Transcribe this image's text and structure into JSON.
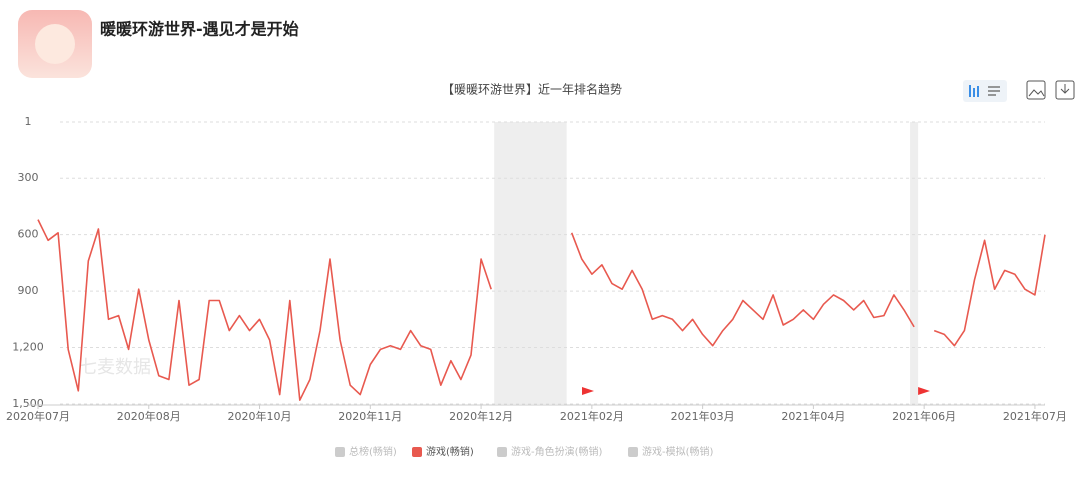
{
  "header": {
    "app_title": "暖暖环游世界-遇见才是开始"
  },
  "chart_data": {
    "type": "line",
    "title": "【暖暖环游世界】近一年排名趋势",
    "watermark": "七麦数据",
    "y_inverted": true,
    "ylim": [
      1,
      1500
    ],
    "yticks": [
      1,
      300,
      600,
      900,
      {
        "value": 1200,
        "label": "1,200"
      },
      {
        "value": 1500,
        "label": "1,500"
      }
    ],
    "xlim": [
      0,
      100
    ],
    "xticks": [
      {
        "value": 0,
        "label": "2020年07月"
      },
      {
        "value": 11,
        "label": "2020年08月"
      },
      {
        "value": 22,
        "label": "2020年10月"
      },
      {
        "value": 33,
        "label": "2020年11月"
      },
      {
        "value": 44,
        "label": "2020年12月"
      },
      {
        "value": 55,
        "label": "2021年02月"
      },
      {
        "value": 66,
        "label": "2021年03月"
      },
      {
        "value": 77,
        "label": "2021年04月"
      },
      {
        "value": 88,
        "label": "2021年06月"
      },
      {
        "value": 99,
        "label": "2021年07月"
      }
    ],
    "grid": true,
    "shaded_x_ranges": [
      [
        45.3,
        52.5
      ],
      [
        86.6,
        87.4
      ]
    ],
    "series": [
      {
        "name": "总榜(畅销)",
        "color": "#cccccc",
        "visible": false,
        "values": [
          null,
          null,
          null,
          null,
          null,
          null,
          null,
          null,
          null,
          null,
          null,
          null,
          null,
          null,
          null,
          null,
          null,
          null,
          null,
          null,
          null,
          null,
          null,
          null,
          null,
          null,
          null,
          null,
          null,
          null,
          null,
          null,
          null,
          null,
          null,
          null,
          null,
          null,
          null,
          null,
          null,
          null,
          null,
          null,
          null,
          null,
          null,
          null,
          null,
          null,
          null,
          null,
          null,
          null,
          null,
          null,
          null,
          null,
          null,
          null,
          null,
          null,
          null,
          null,
          null,
          null,
          null,
          null,
          null,
          null,
          null,
          null,
          null,
          null,
          null,
          null,
          null,
          null,
          null,
          null,
          null,
          null,
          null,
          null,
          null,
          null,
          null,
          null,
          null,
          null,
          null,
          null,
          null,
          null,
          null,
          null,
          null,
          null,
          null,
          null,
          null
        ]
      },
      {
        "name": "游戏(畅销)",
        "color": "#e8594f",
        "visible": true,
        "values": [
          520,
          630,
          590,
          1210,
          1430,
          740,
          570,
          1050,
          1030,
          1210,
          890,
          1160,
          1350,
          1370,
          950,
          1400,
          1370,
          950,
          950,
          1110,
          1030,
          1110,
          1050,
          1160,
          1450,
          950,
          1480,
          1370,
          1110,
          730,
          1160,
          1400,
          1450,
          1290,
          1210,
          1190,
          1210,
          1110,
          1190,
          1210,
          1400,
          1270,
          1370,
          1240,
          730,
          890,
          null,
          null,
          null,
          null,
          null,
          null,
          null,
          590,
          730,
          810,
          760,
          860,
          890,
          790,
          890,
          1050,
          1030,
          1050,
          1110,
          1050,
          1130,
          1190,
          1110,
          1050,
          950,
          1000,
          1050,
          920,
          1080,
          1050,
          1000,
          1050,
          970,
          920,
          950,
          1000,
          950,
          1040,
          1030,
          920,
          1000,
          1090,
          null,
          1110,
          1130,
          1190,
          1110,
          840,
          630,
          890,
          790,
          810,
          890,
          920,
          600
        ]
      },
      {
        "name": "游戏-角色扮演(畅销)",
        "color": "#cccccc",
        "visible": false,
        "values": [
          null,
          null,
          null,
          null,
          null,
          null,
          null,
          null,
          null,
          null,
          null,
          null,
          null,
          null,
          null,
          null,
          null,
          null,
          null,
          null,
          null,
          null,
          null,
          null,
          null,
          null,
          null,
          null,
          null,
          null,
          null,
          null,
          null,
          null,
          null,
          null,
          null,
          null,
          null,
          null,
          null,
          null,
          null,
          null,
          null,
          null,
          null,
          null,
          null,
          null,
          null,
          null,
          null,
          null,
          null,
          null,
          null,
          null,
          null,
          null,
          null,
          null,
          null,
          null,
          null,
          null,
          null,
          null,
          null,
          null,
          null,
          null,
          null,
          null,
          null,
          null,
          null,
          null,
          null,
          null,
          null,
          null,
          null,
          null,
          null,
          null,
          null,
          null,
          null,
          null,
          null,
          null,
          null,
          null,
          null,
          null,
          null,
          null,
          null,
          null,
          null
        ]
      },
      {
        "name": "游戏-模拟(畅销)",
        "color": "#cccccc",
        "visible": false,
        "values": [
          null,
          null,
          null,
          null,
          null,
          null,
          null,
          null,
          null,
          null,
          null,
          null,
          null,
          null,
          null,
          null,
          null,
          null,
          null,
          null,
          null,
          null,
          null,
          null,
          null,
          null,
          null,
          null,
          null,
          null,
          null,
          null,
          null,
          null,
          null,
          null,
          null,
          null,
          null,
          null,
          null,
          null,
          null,
          null,
          null,
          null,
          null,
          null,
          null,
          null,
          null,
          null,
          null,
          null,
          null,
          null,
          null,
          null,
          null,
          null,
          null,
          null,
          null,
          null,
          null,
          null,
          null,
          null,
          null,
          null,
          null,
          null,
          null,
          null,
          null,
          null,
          null,
          null,
          null,
          null,
          null,
          null,
          null,
          null,
          null,
          null,
          null,
          null,
          null,
          null,
          null,
          null,
          null,
          null,
          null,
          null,
          null,
          null,
          null,
          null,
          null
        ]
      }
    ]
  }
}
